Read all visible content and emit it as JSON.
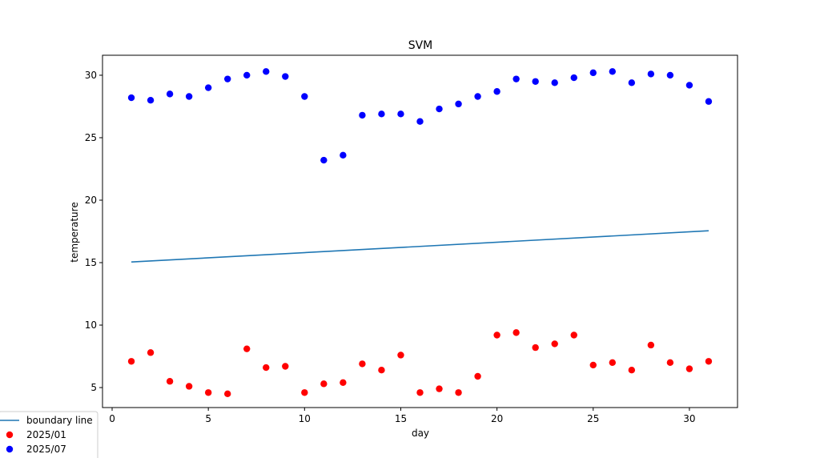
{
  "chart_data": {
    "type": "scatter",
    "title": "SVM",
    "xlabel": "day",
    "ylabel": "temperature",
    "xlim": [
      -0.5,
      32.5
    ],
    "ylim": [
      3.4,
      31.6
    ],
    "xticks": [
      0,
      5,
      10,
      15,
      20,
      25,
      30
    ],
    "yticks": [
      5,
      10,
      15,
      20,
      25,
      30
    ],
    "grid": false,
    "legend_position": "lower-left, outside plot area",
    "boundary_line": {
      "name": "boundary line",
      "color": "#1f77b4",
      "x": [
        1,
        31
      ],
      "y": [
        15.05,
        17.55
      ]
    },
    "series": [
      {
        "name": "2025/01",
        "color": "#ff0000",
        "x": [
          1,
          2,
          3,
          4,
          5,
          6,
          7,
          8,
          9,
          10,
          11,
          12,
          13,
          14,
          15,
          16,
          17,
          18,
          19,
          20,
          21,
          22,
          23,
          24,
          25,
          26,
          27,
          28,
          29,
          30,
          31
        ],
        "y": [
          7.1,
          7.8,
          5.5,
          5.1,
          4.6,
          4.5,
          8.1,
          6.6,
          6.7,
          4.6,
          5.3,
          5.4,
          6.9,
          6.4,
          7.6,
          4.6,
          4.9,
          4.6,
          5.9,
          9.2,
          9.4,
          8.2,
          8.5,
          9.2,
          6.8,
          7.0,
          6.4,
          8.4,
          7.0,
          6.5,
          7.1
        ]
      },
      {
        "name": "2025/07",
        "color": "#0000ff",
        "x": [
          1,
          2,
          3,
          4,
          5,
          6,
          7,
          8,
          9,
          10,
          11,
          12,
          13,
          14,
          15,
          16,
          17,
          18,
          19,
          20,
          21,
          22,
          23,
          24,
          25,
          26,
          27,
          28,
          29,
          30,
          31
        ],
        "y": [
          28.2,
          28.0,
          28.5,
          28.3,
          29.0,
          29.7,
          30.0,
          30.3,
          29.9,
          28.3,
          23.2,
          23.6,
          26.8,
          26.9,
          26.9,
          26.3,
          27.3,
          27.7,
          28.3,
          28.7,
          29.7,
          29.5,
          29.4,
          29.8,
          30.2,
          30.3,
          29.4,
          30.1,
          30.0,
          29.2,
          27.9
        ]
      }
    ]
  }
}
